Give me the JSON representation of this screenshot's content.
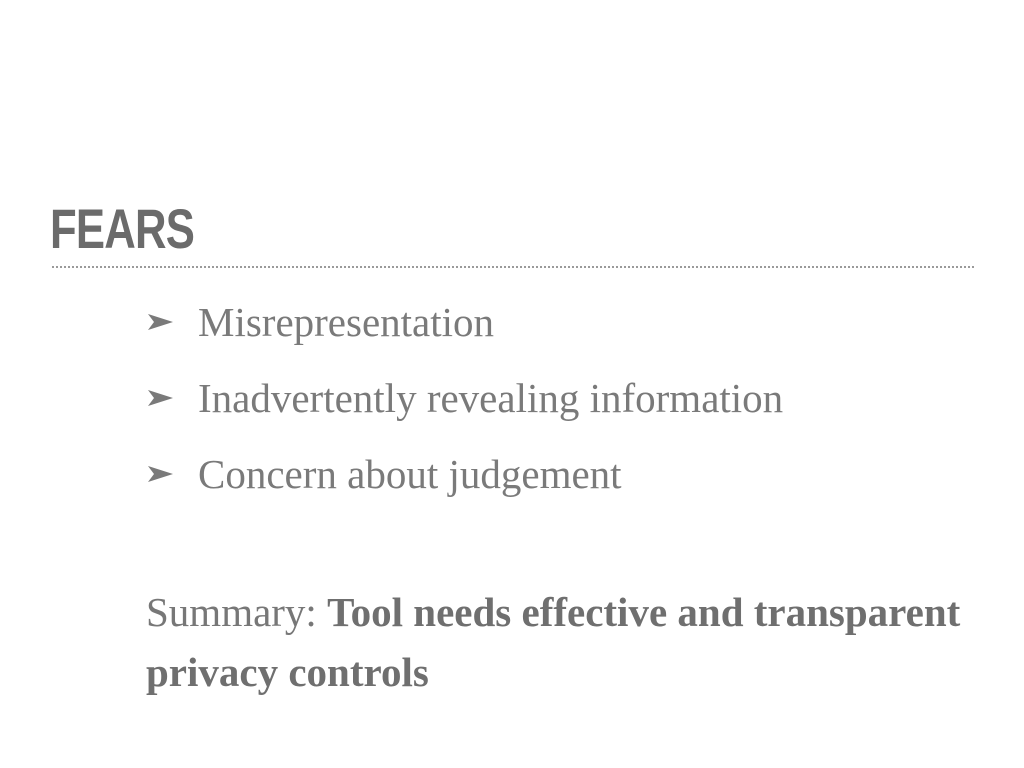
{
  "slide": {
    "title": "FEARS",
    "bullets": [
      {
        "icon": "arrowhead-bullet-icon",
        "text": "Misrepresentation"
      },
      {
        "icon": "arrowhead-bullet-icon",
        "text": "Inadvertently revealing information"
      },
      {
        "icon": "arrowhead-bullet-icon",
        "text": "Concern about judgement"
      }
    ],
    "summary": {
      "label": "Summary: ",
      "text": "Tool needs effective and transparent privacy controls"
    }
  },
  "colors": {
    "background": "#ffffff",
    "text": "#777777",
    "title": "#6b6b6b",
    "divider": "#9a9a9a"
  }
}
